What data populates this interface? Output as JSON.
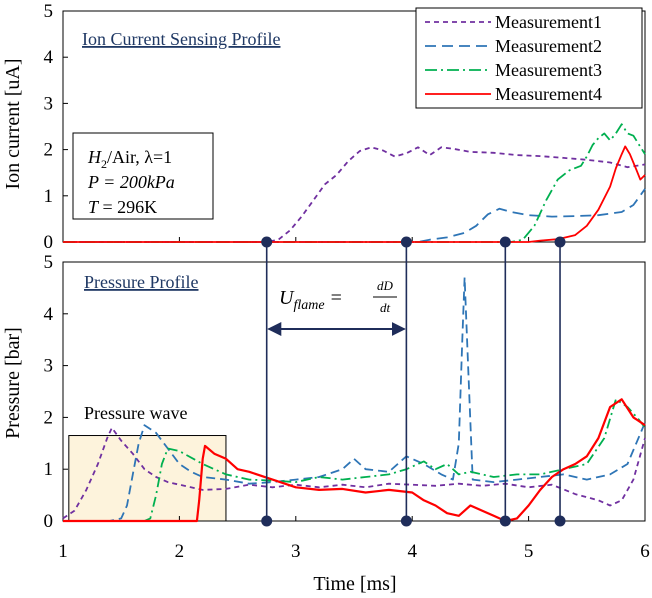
{
  "chart_data": [
    {
      "panel": "ion_current",
      "type": "line",
      "title": "Ion Current Sensing Profile",
      "ylabel": "Ion current [uA]",
      "xlim": [
        1,
        6
      ],
      "ylim": [
        0,
        5
      ],
      "yticks": [
        "0",
        "1",
        "2",
        "3",
        "4",
        "5"
      ],
      "grid": false,
      "legend": {
        "placement": "top-right",
        "entries": [
          "Measurement1",
          "Measurement2",
          "Measurement3",
          "Measurement4"
        ]
      },
      "conditions": {
        "line1_a": "H",
        "line1_sub": "2",
        "line1_b": "/Air, λ=1",
        "line2": "P = 200kPa",
        "line3_a": "T",
        "line3_b": " = 296K"
      },
      "series": [
        {
          "name": "Measurement1",
          "color": "#7030a0",
          "dash": "5,4",
          "points": [
            [
              1.0,
              0
            ],
            [
              2.75,
              0
            ],
            [
              2.85,
              0.05
            ],
            [
              2.95,
              0.25
            ],
            [
              3.05,
              0.55
            ],
            [
              3.15,
              0.9
            ],
            [
              3.25,
              1.25
            ],
            [
              3.35,
              1.45
            ],
            [
              3.45,
              1.75
            ],
            [
              3.55,
              1.97
            ],
            [
              3.65,
              2.05
            ],
            [
              3.75,
              1.98
            ],
            [
              3.85,
              1.85
            ],
            [
              3.95,
              1.92
            ],
            [
              4.05,
              2.05
            ],
            [
              4.15,
              1.88
            ],
            [
              4.25,
              2.05
            ],
            [
              4.35,
              2.02
            ],
            [
              4.5,
              1.95
            ],
            [
              4.7,
              1.93
            ],
            [
              4.9,
              1.88
            ],
            [
              5.1,
              1.86
            ],
            [
              5.3,
              1.82
            ],
            [
              5.5,
              1.78
            ],
            [
              5.7,
              1.72
            ],
            [
              5.85,
              1.62
            ],
            [
              6.0,
              1.68
            ]
          ]
        },
        {
          "name": "Measurement2",
          "color": "#2e75b6",
          "dash": "11,6",
          "points": [
            [
              1.0,
              0
            ],
            [
              4.05,
              0
            ],
            [
              4.15,
              0.05
            ],
            [
              4.3,
              0.1
            ],
            [
              4.45,
              0.2
            ],
            [
              4.55,
              0.35
            ],
            [
              4.65,
              0.6
            ],
            [
              4.75,
              0.72
            ],
            [
              4.85,
              0.65
            ],
            [
              5.0,
              0.58
            ],
            [
              5.2,
              0.55
            ],
            [
              5.4,
              0.56
            ],
            [
              5.6,
              0.58
            ],
            [
              5.8,
              0.65
            ],
            [
              5.9,
              0.8
            ],
            [
              6.0,
              1.15
            ]
          ]
        },
        {
          "name": "Measurement3",
          "color": "#00b050",
          "dash": "12,4,2,4",
          "points": [
            [
              1.0,
              0
            ],
            [
              4.85,
              0
            ],
            [
              4.95,
              0.05
            ],
            [
              5.05,
              0.35
            ],
            [
              5.15,
              0.9
            ],
            [
              5.25,
              1.35
            ],
            [
              5.35,
              1.55
            ],
            [
              5.45,
              1.65
            ],
            [
              5.5,
              1.85
            ],
            [
              5.55,
              2.1
            ],
            [
              5.6,
              2.25
            ],
            [
              5.65,
              2.35
            ],
            [
              5.7,
              2.2
            ],
            [
              5.75,
              2.35
            ],
            [
              5.8,
              2.55
            ],
            [
              5.85,
              2.35
            ],
            [
              5.9,
              2.3
            ],
            [
              5.95,
              2.1
            ],
            [
              6.0,
              1.9
            ]
          ]
        },
        {
          "name": "Measurement4",
          "color": "#ff0000",
          "dash": "",
          "points": [
            [
              1.0,
              0
            ],
            [
              5.0,
              0
            ],
            [
              5.1,
              0.03
            ],
            [
              5.25,
              0.06
            ],
            [
              5.4,
              0.15
            ],
            [
              5.5,
              0.35
            ],
            [
              5.6,
              0.7
            ],
            [
              5.7,
              1.2
            ],
            [
              5.75,
              1.6
            ],
            [
              5.8,
              1.9
            ],
            [
              5.83,
              2.07
            ],
            [
              5.87,
              1.9
            ],
            [
              5.92,
              1.6
            ],
            [
              5.96,
              1.35
            ],
            [
              6.0,
              1.45
            ]
          ]
        }
      ],
      "markers_x": [
        2.75,
        3.95,
        4.8,
        5.27
      ]
    },
    {
      "panel": "pressure",
      "type": "line",
      "title": "Pressure Profile",
      "xlabel": "Time [ms]",
      "ylabel": "Pressure [bar]",
      "xlim": [
        1,
        6
      ],
      "ylim": [
        0,
        5
      ],
      "xticks": [
        "1",
        "2",
        "3",
        "4",
        "5",
        "6"
      ],
      "yticks": [
        "0",
        "1",
        "2",
        "3",
        "4",
        "5"
      ],
      "grid": false,
      "annotation_box": {
        "label": "Pressure wave",
        "x_range": [
          1.05,
          2.4
        ],
        "y_range": [
          0,
          1.65
        ]
      },
      "flame_equation": {
        "lhs": "U",
        "lhs_sub": "flame",
        "eq": "=",
        "num": "dD",
        "den": "dt"
      },
      "arrow_x": [
        2.75,
        3.95
      ],
      "series": [
        {
          "name": "Measurement1",
          "color": "#7030a0",
          "dash": "5,4",
          "points": [
            [
              1.0,
              0.05
            ],
            [
              1.1,
              0.2
            ],
            [
              1.2,
              0.6
            ],
            [
              1.3,
              1.1
            ],
            [
              1.38,
              1.6
            ],
            [
              1.42,
              1.8
            ],
            [
              1.5,
              1.55
            ],
            [
              1.6,
              1.3
            ],
            [
              1.7,
              1.0
            ],
            [
              1.8,
              0.85
            ],
            [
              1.9,
              0.75
            ],
            [
              2.0,
              0.7
            ],
            [
              2.2,
              0.6
            ],
            [
              2.4,
              0.62
            ],
            [
              2.6,
              0.7
            ],
            [
              2.8,
              0.65
            ],
            [
              3.0,
              0.7
            ],
            [
              3.2,
              0.65
            ],
            [
              3.4,
              0.7
            ],
            [
              3.6,
              0.65
            ],
            [
              3.8,
              0.72
            ],
            [
              4.0,
              0.7
            ],
            [
              4.2,
              0.68
            ],
            [
              4.4,
              0.72
            ],
            [
              4.6,
              0.68
            ],
            [
              4.8,
              0.72
            ],
            [
              5.0,
              0.65
            ],
            [
              5.2,
              0.7
            ],
            [
              5.4,
              0.52
            ],
            [
              5.6,
              0.4
            ],
            [
              5.7,
              0.3
            ],
            [
              5.8,
              0.4
            ],
            [
              5.9,
              0.8
            ],
            [
              6.0,
              1.6
            ]
          ]
        },
        {
          "name": "Measurement2",
          "color": "#2e75b6",
          "dash": "9,5",
          "points": [
            [
              1.0,
              0
            ],
            [
              1.4,
              0
            ],
            [
              1.5,
              0.05
            ],
            [
              1.55,
              0.3
            ],
            [
              1.6,
              0.9
            ],
            [
              1.65,
              1.5
            ],
            [
              1.7,
              1.85
            ],
            [
              1.8,
              1.7
            ],
            [
              1.9,
              1.4
            ],
            [
              2.0,
              1.1
            ],
            [
              2.1,
              0.95
            ],
            [
              2.2,
              0.85
            ],
            [
              2.4,
              0.8
            ],
            [
              2.6,
              0.72
            ],
            [
              2.8,
              0.75
            ],
            [
              3.0,
              0.8
            ],
            [
              3.2,
              0.85
            ],
            [
              3.4,
              1.0
            ],
            [
              3.5,
              1.2
            ],
            [
              3.6,
              1.0
            ],
            [
              3.8,
              0.95
            ],
            [
              3.95,
              1.25
            ],
            [
              4.1,
              1.1
            ],
            [
              4.25,
              0.9
            ],
            [
              4.35,
              0.8
            ],
            [
              4.4,
              1.5
            ],
            [
              4.43,
              3.5
            ],
            [
              4.45,
              4.7
            ],
            [
              4.48,
              3.0
            ],
            [
              4.52,
              0.8
            ],
            [
              4.7,
              0.75
            ],
            [
              4.9,
              0.8
            ],
            [
              5.1,
              0.85
            ],
            [
              5.3,
              0.9
            ],
            [
              5.5,
              0.8
            ],
            [
              5.7,
              0.9
            ],
            [
              5.85,
              1.1
            ],
            [
              6.0,
              1.9
            ]
          ]
        },
        {
          "name": "Measurement3",
          "color": "#00b050",
          "dash": "10,4,2,4",
          "points": [
            [
              1.0,
              0
            ],
            [
              1.7,
              0
            ],
            [
              1.75,
              0.05
            ],
            [
              1.8,
              0.5
            ],
            [
              1.85,
              1.1
            ],
            [
              1.9,
              1.4
            ],
            [
              2.0,
              1.35
            ],
            [
              2.2,
              1.1
            ],
            [
              2.4,
              0.9
            ],
            [
              2.6,
              0.8
            ],
            [
              2.8,
              0.78
            ],
            [
              3.0,
              0.75
            ],
            [
              3.2,
              0.85
            ],
            [
              3.4,
              0.8
            ],
            [
              3.6,
              0.85
            ],
            [
              3.8,
              0.9
            ],
            [
              3.95,
              1.0
            ],
            [
              4.1,
              1.15
            ],
            [
              4.2,
              1.0
            ],
            [
              4.3,
              1.1
            ],
            [
              4.4,
              0.9
            ],
            [
              4.5,
              0.95
            ],
            [
              4.7,
              0.85
            ],
            [
              4.9,
              0.9
            ],
            [
              5.1,
              0.9
            ],
            [
              5.3,
              1.0
            ],
            [
              5.5,
              1.1
            ],
            [
              5.65,
              1.6
            ],
            [
              5.75,
              2.35
            ],
            [
              5.85,
              2.2
            ],
            [
              5.95,
              1.95
            ],
            [
              6.0,
              1.8
            ]
          ]
        },
        {
          "name": "Measurement4",
          "color": "#ff0000",
          "dash": "",
          "points": [
            [
              1.0,
              0
            ],
            [
              2.15,
              0
            ],
            [
              2.17,
              0.4
            ],
            [
              2.2,
              1.2
            ],
            [
              2.22,
              1.45
            ],
            [
              2.3,
              1.3
            ],
            [
              2.4,
              1.2
            ],
            [
              2.5,
              1.0
            ],
            [
              2.6,
              0.95
            ],
            [
              2.8,
              0.8
            ],
            [
              3.0,
              0.65
            ],
            [
              3.2,
              0.6
            ],
            [
              3.4,
              0.62
            ],
            [
              3.6,
              0.55
            ],
            [
              3.8,
              0.6
            ],
            [
              4.0,
              0.55
            ],
            [
              4.1,
              0.4
            ],
            [
              4.2,
              0.3
            ],
            [
              4.3,
              0.15
            ],
            [
              4.4,
              0.1
            ],
            [
              4.5,
              0.3
            ],
            [
              4.6,
              0.2
            ],
            [
              4.7,
              0.1
            ],
            [
              4.8,
              0.0
            ],
            [
              4.9,
              0.05
            ],
            [
              5.0,
              0.3
            ],
            [
              5.1,
              0.6
            ],
            [
              5.2,
              0.85
            ],
            [
              5.3,
              1.0
            ],
            [
              5.4,
              1.1
            ],
            [
              5.5,
              1.25
            ],
            [
              5.6,
              1.6
            ],
            [
              5.7,
              2.2
            ],
            [
              5.8,
              2.35
            ],
            [
              5.9,
              2.0
            ],
            [
              6.0,
              1.85
            ]
          ]
        }
      ],
      "markers_x": [
        2.75,
        3.95,
        4.8,
        5.27
      ]
    }
  ]
}
